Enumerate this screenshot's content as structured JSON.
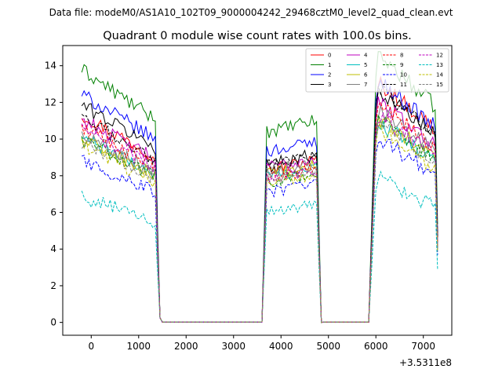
{
  "chart_data": {
    "type": "line",
    "suptitle": "Data file: modeM0/AS1A10_102T09_9000004242_29468cztM0_level2_quad_clean.evt",
    "title": "Quadrant 0 module wise count rates with 100.0s bins.",
    "xlabel": "",
    "ylabel": "",
    "x_offset_label": "+3.5311e8",
    "xlim": [
      -600,
      7600
    ],
    "ylim": [
      -0.7,
      15.1
    ],
    "x_ticks": [
      0,
      1000,
      2000,
      3000,
      4000,
      5000,
      6000,
      7000
    ],
    "y_ticks": [
      0,
      2,
      4,
      6,
      8,
      10,
      12,
      14
    ],
    "legend_location": "top-right",
    "active_windows": [
      {
        "start": -200,
        "end": 1350,
        "decay_start": 1450,
        "decay_end": 1500
      },
      {
        "start": 3650,
        "end": 4750,
        "decay_start": 3550,
        "decay_end": 4850
      },
      {
        "start": 6000,
        "end": 7250,
        "decay_start": 5850,
        "decay_end": 7300
      }
    ],
    "series": [
      {
        "name": "0",
        "color": "#ff0000",
        "dash": "solid",
        "levels": [
          10.1,
          8.6,
          12.0
        ]
      },
      {
        "name": "1",
        "color": "#008000",
        "dash": "solid",
        "levels": [
          12.3,
          10.7,
          13.4
        ]
      },
      {
        "name": "2",
        "color": "#0000ff",
        "dash": "solid",
        "levels": [
          11.1,
          9.6,
          12.1
        ]
      },
      {
        "name": "3",
        "color": "#000000",
        "dash": "solid",
        "levels": [
          10.6,
          8.9,
          11.6
        ]
      },
      {
        "name": "4",
        "color": "#bf00bf",
        "dash": "solid",
        "levels": [
          9.9,
          8.7,
          11.0
        ]
      },
      {
        "name": "5",
        "color": "#00bfbf",
        "dash": "solid",
        "levels": [
          9.0,
          8.2,
          10.0
        ]
      },
      {
        "name": "6",
        "color": "#bfbf00",
        "dash": "solid",
        "levels": [
          8.9,
          8.3,
          10.2
        ]
      },
      {
        "name": "7",
        "color": "#808080",
        "dash": "solid",
        "levels": [
          9.2,
          8.5,
          10.6
        ]
      },
      {
        "name": "8",
        "color": "#ff0000",
        "dash": "dashed",
        "levels": [
          9.5,
          8.1,
          10.9
        ]
      },
      {
        "name": "9",
        "color": "#008000",
        "dash": "dashed",
        "levels": [
          8.9,
          7.9,
          10.1
        ]
      },
      {
        "name": "10",
        "color": "#0000ff",
        "dash": "dashed",
        "levels": [
          7.9,
          7.3,
          9.2
        ]
      },
      {
        "name": "11",
        "color": "#000000",
        "dash": "dashed",
        "levels": [
          9.9,
          8.8,
          11.7
        ]
      },
      {
        "name": "12",
        "color": "#bf00bf",
        "dash": "dashed",
        "levels": [
          9.4,
          8.1,
          10.4
        ]
      },
      {
        "name": "13",
        "color": "#00bfbf",
        "dash": "dashed",
        "levels": [
          6.1,
          6.2,
          7.2
        ]
      },
      {
        "name": "14",
        "color": "#bfbf00",
        "dash": "dashed",
        "levels": [
          8.6,
          7.8,
          9.6
        ]
      },
      {
        "name": "15",
        "color": "#808080",
        "dash": "dashed",
        "levels": [
          8.8,
          8.0,
          10.0
        ]
      }
    ]
  }
}
